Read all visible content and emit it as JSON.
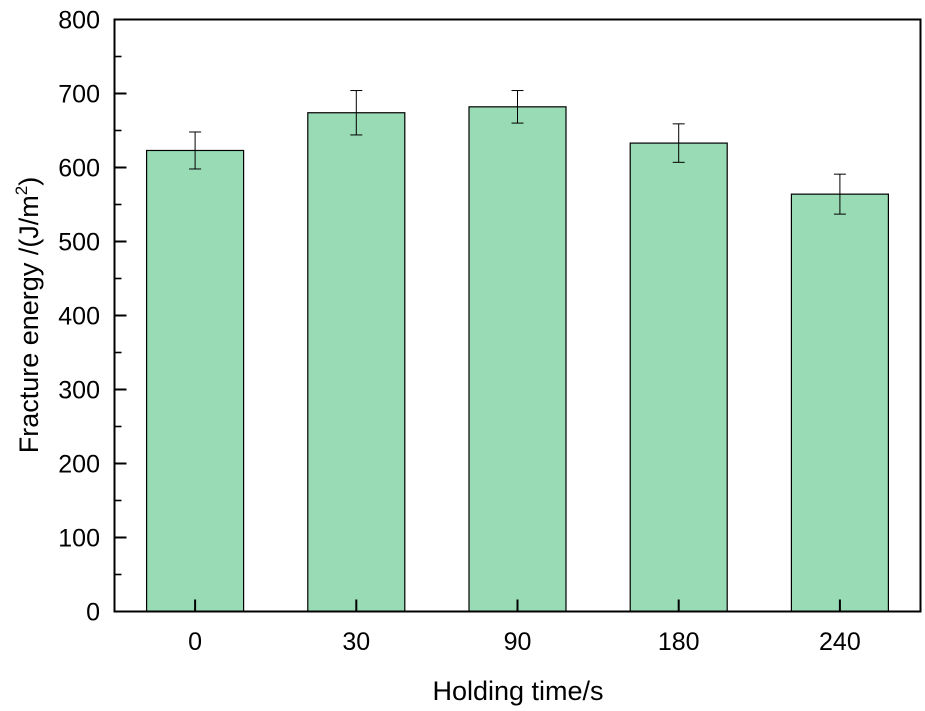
{
  "chart_data": {
    "type": "bar",
    "categories": [
      "0",
      "30",
      "90",
      "180",
      "240"
    ],
    "values": [
      623,
      674,
      682,
      633,
      564
    ],
    "errors": [
      25,
      30,
      22,
      26,
      27
    ],
    "xlabel": "Holding time/s",
    "ylabel_main": "Fracture energy /(J/m",
    "ylabel_sup": "2",
    "ylabel_close": ")",
    "ylim": [
      0,
      800
    ],
    "yticks": [
      "0",
      "100",
      "200",
      "300",
      "400",
      "500",
      "600",
      "700",
      "800"
    ],
    "grid": false,
    "legend": "none",
    "bar_color": "#99dbb5",
    "bar_edge_color": "#000000"
  }
}
